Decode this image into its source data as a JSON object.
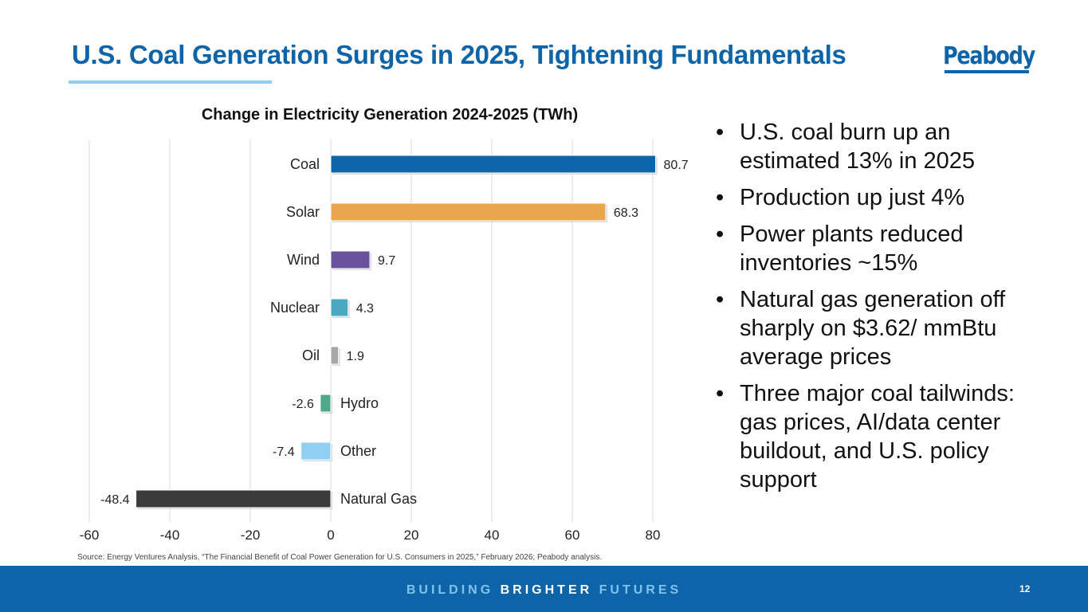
{
  "slide": {
    "title": "U.S. Coal Generation Surges in 2025, Tightening Fundamentals",
    "logo_text": "Peabody",
    "source": "Source: Energy Ventures Analysis, “The Financial Benefit of Coal Power Generation for U.S. Consumers in 2025,” February 2026; Peabody analysis.",
    "bullet_glyph": "•",
    "bullets": [
      "U.S. coal burn up an estimated 13% in 2025",
      "Production up just 4%",
      "Power plants reduced inventories ~15%",
      "Natural gas generation off sharply on $3.62/ mmBtu average prices",
      "Three major coal tailwinds: gas prices, AI/data center buildout, and U.S. policy support"
    ],
    "footer": {
      "tagline_part1": "BUILDING ",
      "tagline_part2": "BRIGHTER",
      "tagline_part3": " FUTURES",
      "page_number": "12"
    },
    "colors": {
      "brand_blue": "#0e64a8",
      "accent_light_blue": "#8ecdf0"
    }
  },
  "chart_data": {
    "type": "bar",
    "orientation": "horizontal",
    "title": "Change in Electricity Generation 2024-2025 (TWh)",
    "xlabel": "",
    "ylabel": "",
    "categories": [
      "Coal",
      "Solar",
      "Wind",
      "Nuclear",
      "Oil",
      "Hydro",
      "Other",
      "Natural Gas"
    ],
    "values": [
      80.7,
      68.3,
      9.7,
      4.3,
      1.9,
      -2.6,
      -7.4,
      -48.4
    ],
    "value_labels": [
      "80.7",
      "68.3",
      "9.7",
      "4.3",
      "1.9",
      "-2.6",
      "-7.4",
      "-48.4"
    ],
    "bar_colors": [
      "#0e64a8",
      "#e8a64f",
      "#6a529c",
      "#4aa8c2",
      "#a6a6a6",
      "#4fa88a",
      "#8fd0f2",
      "#3b3b3b"
    ],
    "xlim": [
      -60,
      80
    ],
    "xticks": [
      -60,
      -40,
      -20,
      0,
      20,
      40,
      60,
      80
    ],
    "xtick_labels": [
      "-60",
      "-40",
      "-20",
      "0",
      "20",
      "40",
      "60",
      "80"
    ],
    "grid": "vertical",
    "legend": "none"
  }
}
